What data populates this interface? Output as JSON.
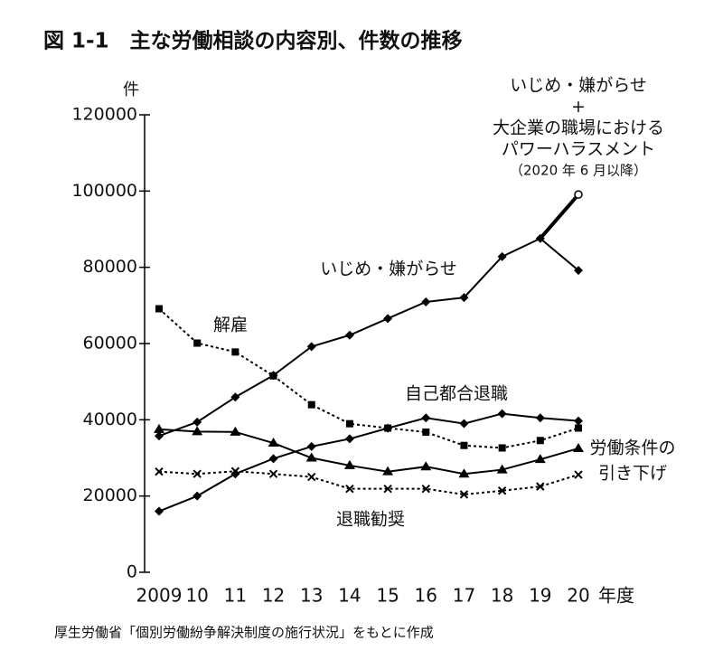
{
  "chart_data": {
    "type": "line",
    "title": "図 1-1　主な労働相談の内容別、件数の推移",
    "source": "厚生労働省「個別労働紛争解決制度の施行状況」をもとに作成",
    "x_label": "年度",
    "y_label": "件",
    "categories": [
      "2009",
      "10",
      "11",
      "12",
      "13",
      "14",
      "15",
      "16",
      "17",
      "18",
      "19",
      "20"
    ],
    "ylim": [
      0,
      120000
    ],
    "yticks": [
      0,
      20000,
      40000,
      60000,
      80000,
      100000,
      120000
    ],
    "grid": false,
    "series": [
      {
        "name": "いじめ・嫌がらせ",
        "color": "#000000",
        "marker": "diamond",
        "dash": "solid",
        "values": [
          35759,
          39405,
          45939,
          51670,
          59197,
          62191,
          66566,
          70917,
          72067,
          82797,
          87570,
          79190
        ]
      },
      {
        "name": "解雇",
        "color": "#000000",
        "marker": "square",
        "dash": "dotted",
        "values": [
          69121,
          60118,
          57785,
          51515,
          43956,
          38966,
          37818,
          36760,
          33269,
          32614,
          34561,
          37826
        ]
      },
      {
        "name": "自己都合退職",
        "color": "#000000",
        "marker": "diamond",
        "dash": "solid",
        "values": [
          16000,
          20000,
          25800,
          29800,
          33000,
          35000,
          37800,
          40500,
          39000,
          41600,
          40500,
          39700
        ]
      },
      {
        "name": "労働条件の引き下げ",
        "label_lines": [
          "労働条件の",
          "引き下げ"
        ],
        "color": "#000000",
        "marker": "triangle",
        "dash": "solid",
        "values": [
          37500,
          36900,
          36800,
          33900,
          30000,
          28000,
          26400,
          27700,
          25800,
          26900,
          29600,
          32500
        ]
      },
      {
        "name": "退職勧奨",
        "color": "#000000",
        "marker": "x",
        "dash": "dotted",
        "values": [
          26400,
          25800,
          26500,
          25800,
          25000,
          21900,
          21900,
          21900,
          20400,
          21400,
          22500,
          25600
        ]
      },
      {
        "name": "いじめ・嫌がらせ＋大企業の職場におけるパワーハラスメント（2020 年 6 月以降）",
        "label_lines": [
          "いじめ・嫌がらせ",
          "+",
          "大企業の職場における",
          "パワーハラスメント",
          "（2020 年 6 月以降）"
        ],
        "color": "#000000",
        "marker": "circle-open",
        "dash": "thick",
        "values": [
          null,
          null,
          null,
          null,
          null,
          null,
          null,
          null,
          null,
          null,
          87570,
          99093
        ]
      }
    ]
  }
}
